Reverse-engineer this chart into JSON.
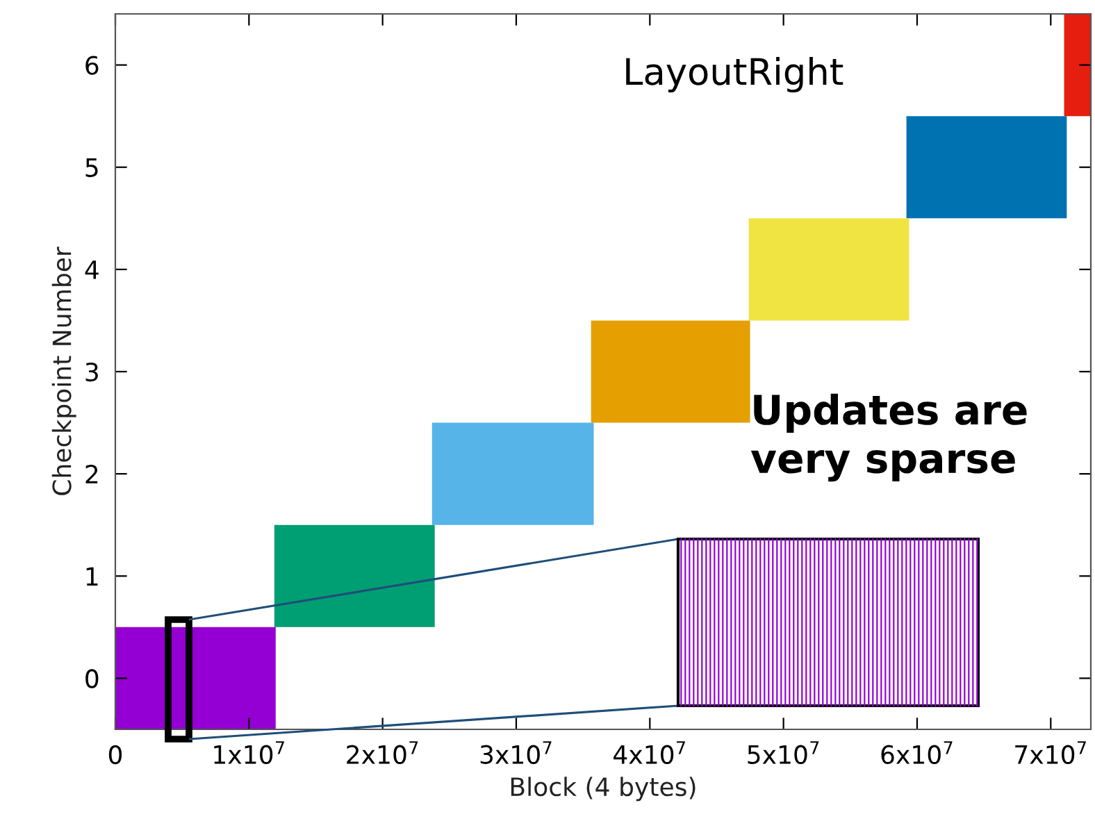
{
  "chart_data": {
    "type": "bar",
    "orientation": "horizontal",
    "xlabel": "Block (4 bytes)",
    "ylabel": "Checkpoint Number",
    "categories": [
      "6",
      "5",
      "4",
      "3",
      "2",
      "1",
      "0"
    ],
    "base": [
      71000000,
      59200000,
      47400000,
      35600000,
      23700000,
      11900000,
      0
    ],
    "values": [
      2000000,
      12000000,
      12000000,
      11900000,
      12100000,
      12000000,
      12000000
    ],
    "colors": [
      "#e51e10",
      "#0072b2",
      "#f0e442",
      "#e69f00",
      "#56b4e9",
      "#009e73",
      "#9400d3"
    ],
    "xlim": [
      0,
      73000000
    ],
    "xticks": [
      0,
      {
        "value": 10000000,
        "label": "1x10$^{7}$"
      },
      {
        "value": 20000000,
        "label": "2x10$^{7}$"
      },
      {
        "value": 30000000,
        "label": "3x10$^{7}$"
      },
      {
        "value": 40000000,
        "label": "4x10$^{7}$"
      },
      {
        "value": 50000000,
        "label": "5x10$^{7}$"
      },
      {
        "value": 60000000,
        "label": "6x10$^{7}$"
      },
      {
        "value": 70000000,
        "label": "7x10$^{7}$"
      }
    ],
    "annotations": [
      "LayoutRight",
      "Updates are very sparse"
    ]
  }
}
